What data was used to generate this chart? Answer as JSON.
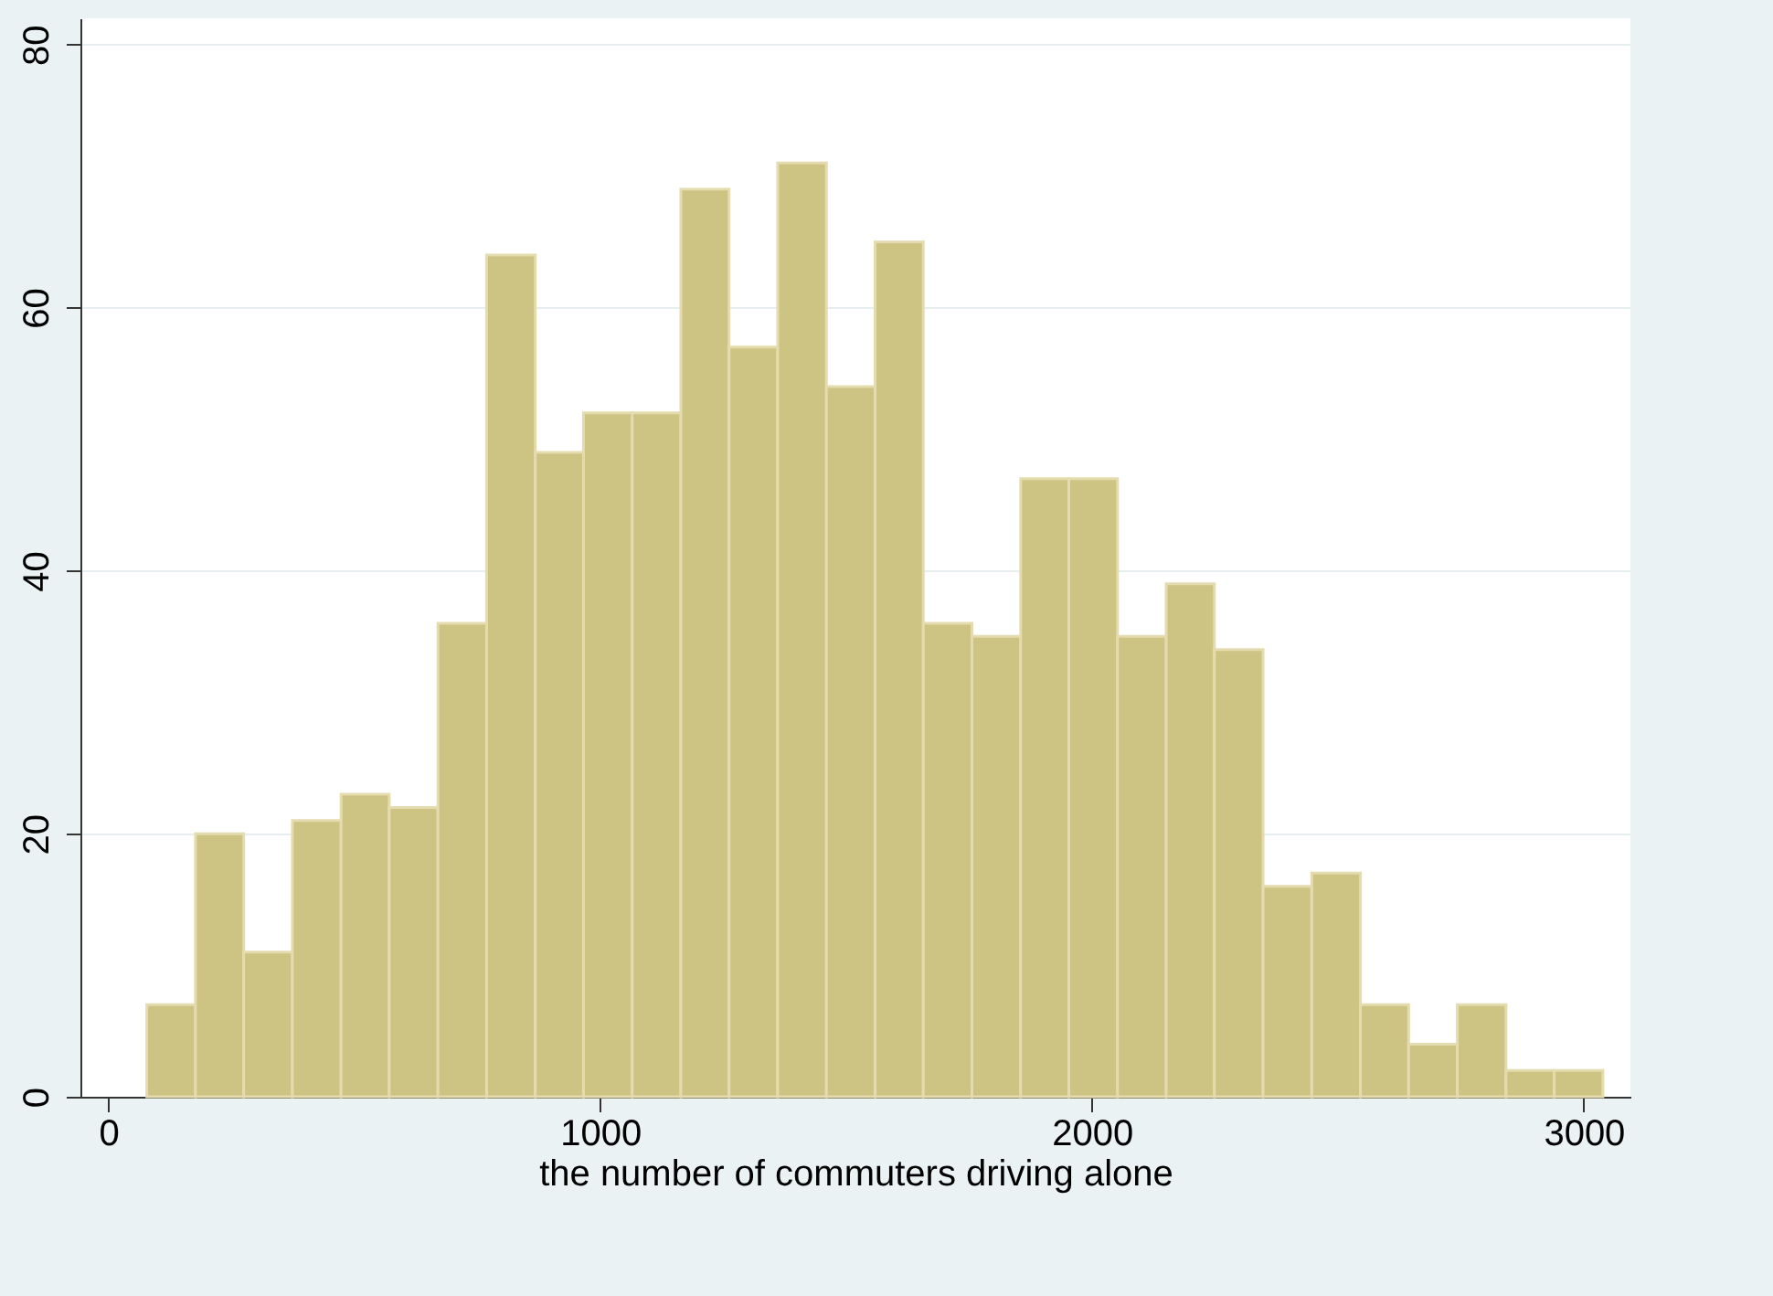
{
  "chart_data": {
    "type": "histogram",
    "xlabel": "the number of commuters driving alone",
    "bins": [
      78,
      177,
      275,
      374,
      473,
      571,
      670,
      769,
      868,
      966,
      1065,
      1164,
      1262,
      1361,
      1460,
      1559,
      1657,
      1756,
      1855,
      1953,
      2052,
      2151,
      2249,
      2348,
      2447,
      2546,
      2644,
      2743,
      2842,
      2940,
      3039
    ],
    "values": [
      7,
      20,
      11,
      21,
      23,
      22,
      36,
      64,
      49,
      52,
      52,
      69,
      57,
      71,
      54,
      65,
      36,
      35,
      47,
      47,
      35,
      39,
      34,
      16,
      17,
      7,
      4,
      7,
      2,
      2
    ],
    "color": "#cdc383",
    "xlim": [
      -57,
      3095
    ],
    "xticks": [
      0,
      1000,
      2000,
      3000
    ],
    "ylim": [
      0,
      82
    ],
    "yticks": [
      0,
      20,
      40,
      60,
      80
    ],
    "grid": "y"
  }
}
